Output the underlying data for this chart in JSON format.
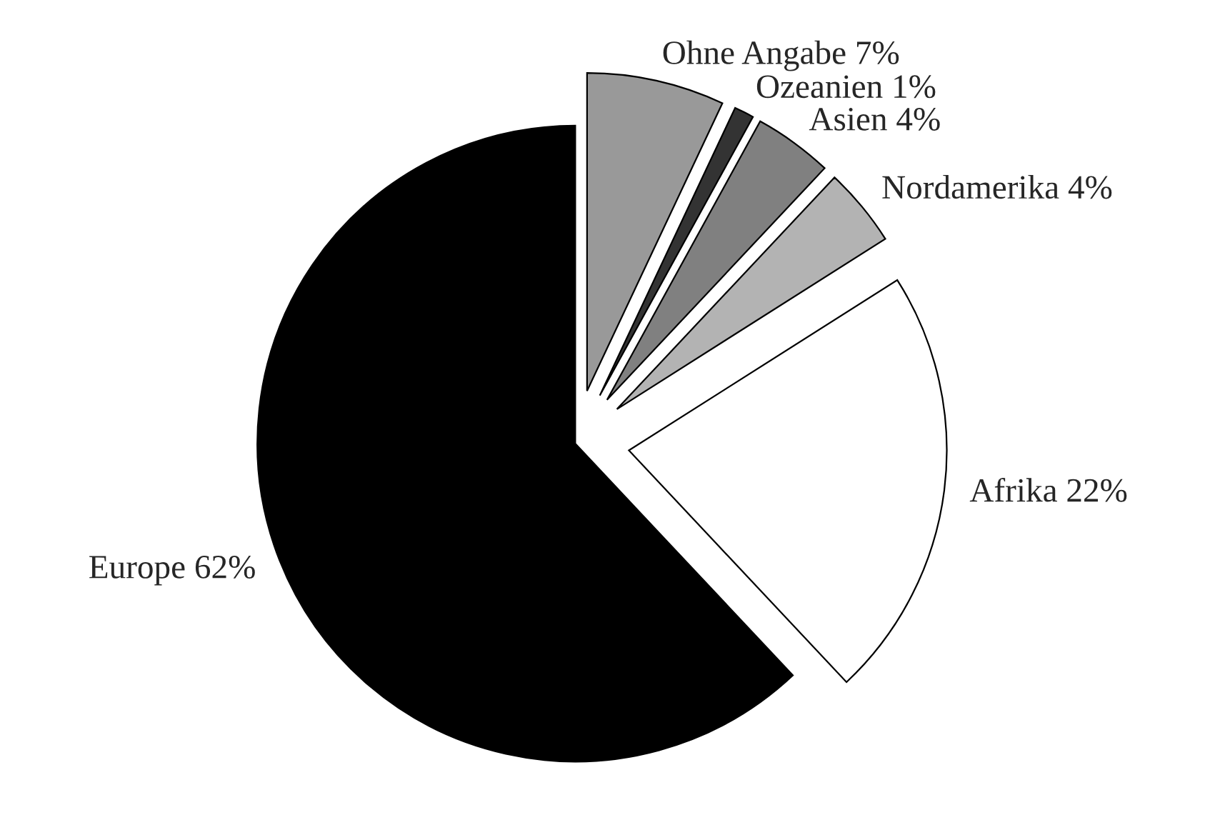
{
  "chart_data": {
    "type": "pie",
    "categories": [
      "Ohne Angabe",
      "Ozeanien",
      "Asien",
      "Nordamerika",
      "Afrika",
      "Europe"
    ],
    "values": [
      7,
      1,
      4,
      4,
      22,
      62
    ],
    "value_labels": [
      "7%",
      "1%",
      "4%",
      "4%",
      "22%",
      "62%"
    ],
    "colors": [
      "#999999",
      "#333333",
      "#808080",
      "#b3b3b3",
      "#ffffff",
      "#000000"
    ],
    "legend": false
  }
}
